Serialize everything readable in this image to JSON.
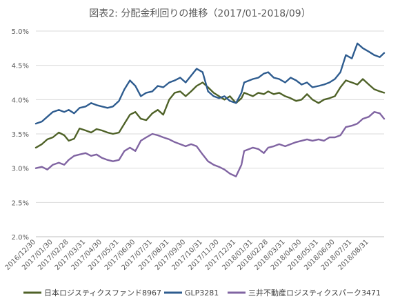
{
  "chart_data": {
    "type": "line",
    "title": "図表2: 分配金利回りの推移（2017/01-2018/09）",
    "xlabel": "",
    "ylabel": "",
    "x_range": [
      "2016-12-30",
      "2018-09-28"
    ],
    "ylim": [
      0.02,
      0.05
    ],
    "y_ticks": [
      0.02,
      0.025,
      0.03,
      0.035,
      0.04,
      0.045,
      0.05
    ],
    "y_tick_labels": [
      "2.0%",
      "2.5%",
      "3.0%",
      "3.5%",
      "4.0%",
      "4.5%",
      "5.0%"
    ],
    "x_tick_labels": [
      "2016/12/30",
      "2017/01/30",
      "2017/02/28",
      "2017/03/31",
      "2017/04/30",
      "2017/05/31",
      "2017/06/30",
      "2017/07/31",
      "2017/08/31",
      "2017/09/30",
      "2017/10/31",
      "2017/11/30",
      "2017/12/31",
      "2018/01/31",
      "2018/02/28",
      "2018/03/31",
      "2018/04/30",
      "2018/05/31",
      "2018/06/30",
      "2018/07/31",
      "2018/08/31"
    ],
    "grid": "horizontal",
    "legend_position": "bottom",
    "series": [
      {
        "name": "日本ロジスティクスファンド8967",
        "color": "#4f6228",
        "points": [
          [
            "2016-12-30",
            0.033
          ],
          [
            "2017-01-10",
            0.0335
          ],
          [
            "2017-01-20",
            0.0342
          ],
          [
            "2017-01-30",
            0.0345
          ],
          [
            "2017-02-10",
            0.0352
          ],
          [
            "2017-02-20",
            0.0348
          ],
          [
            "2017-02-28",
            0.034
          ],
          [
            "2017-03-10",
            0.0343
          ],
          [
            "2017-03-20",
            0.0358
          ],
          [
            "2017-03-31",
            0.0355
          ],
          [
            "2017-04-10",
            0.0352
          ],
          [
            "2017-04-20",
            0.0357
          ],
          [
            "2017-04-30",
            0.0355
          ],
          [
            "2017-05-10",
            0.0352
          ],
          [
            "2017-05-20",
            0.035
          ],
          [
            "2017-05-31",
            0.0352
          ],
          [
            "2017-06-10",
            0.0365
          ],
          [
            "2017-06-20",
            0.0378
          ],
          [
            "2017-06-30",
            0.0382
          ],
          [
            "2017-07-10",
            0.0372
          ],
          [
            "2017-07-20",
            0.037
          ],
          [
            "2017-07-31",
            0.038
          ],
          [
            "2017-08-10",
            0.0385
          ],
          [
            "2017-08-20",
            0.0378
          ],
          [
            "2017-08-31",
            0.04
          ],
          [
            "2017-09-10",
            0.041
          ],
          [
            "2017-09-20",
            0.0412
          ],
          [
            "2017-09-30",
            0.0405
          ],
          [
            "2017-10-10",
            0.0412
          ],
          [
            "2017-10-20",
            0.042
          ],
          [
            "2017-10-31",
            0.0425
          ],
          [
            "2017-11-10",
            0.0418
          ],
          [
            "2017-11-20",
            0.041
          ],
          [
            "2017-11-30",
            0.0405
          ],
          [
            "2017-12-10",
            0.04
          ],
          [
            "2017-12-20",
            0.0405
          ],
          [
            "2017-12-31",
            0.0395
          ],
          [
            "2018-01-10",
            0.0402
          ],
          [
            "2018-01-15",
            0.041
          ],
          [
            "2018-01-31",
            0.0405
          ],
          [
            "2018-02-10",
            0.041
          ],
          [
            "2018-02-20",
            0.0408
          ],
          [
            "2018-02-28",
            0.0412
          ],
          [
            "2018-03-10",
            0.0408
          ],
          [
            "2018-03-20",
            0.041
          ],
          [
            "2018-03-31",
            0.0405
          ],
          [
            "2018-04-10",
            0.0402
          ],
          [
            "2018-04-20",
            0.0398
          ],
          [
            "2018-04-30",
            0.04
          ],
          [
            "2018-05-10",
            0.0408
          ],
          [
            "2018-05-20",
            0.04
          ],
          [
            "2018-05-31",
            0.0395
          ],
          [
            "2018-06-10",
            0.04
          ],
          [
            "2018-06-20",
            0.0402
          ],
          [
            "2018-06-30",
            0.0405
          ],
          [
            "2018-07-10",
            0.0418
          ],
          [
            "2018-07-20",
            0.0428
          ],
          [
            "2018-07-31",
            0.0425
          ],
          [
            "2018-08-10",
            0.0422
          ],
          [
            "2018-08-20",
            0.043
          ],
          [
            "2018-08-31",
            0.0422
          ],
          [
            "2018-09-10",
            0.0415
          ],
          [
            "2018-09-20",
            0.0412
          ],
          [
            "2018-09-28",
            0.041
          ]
        ]
      },
      {
        "name": "GLP3281",
        "color": "#2e5c8f",
        "points": [
          [
            "2016-12-30",
            0.0365
          ],
          [
            "2017-01-10",
            0.0368
          ],
          [
            "2017-01-20",
            0.0375
          ],
          [
            "2017-01-30",
            0.0382
          ],
          [
            "2017-02-10",
            0.0385
          ],
          [
            "2017-02-20",
            0.0382
          ],
          [
            "2017-02-28",
            0.0385
          ],
          [
            "2017-03-10",
            0.038
          ],
          [
            "2017-03-20",
            0.0388
          ],
          [
            "2017-03-31",
            0.039
          ],
          [
            "2017-04-10",
            0.0395
          ],
          [
            "2017-04-20",
            0.0392
          ],
          [
            "2017-04-30",
            0.039
          ],
          [
            "2017-05-10",
            0.0388
          ],
          [
            "2017-05-20",
            0.039
          ],
          [
            "2017-05-31",
            0.0398
          ],
          [
            "2017-06-10",
            0.0415
          ],
          [
            "2017-06-20",
            0.0428
          ],
          [
            "2017-06-30",
            0.042
          ],
          [
            "2017-07-10",
            0.0405
          ],
          [
            "2017-07-20",
            0.041
          ],
          [
            "2017-07-31",
            0.0412
          ],
          [
            "2017-08-10",
            0.042
          ],
          [
            "2017-08-20",
            0.0418
          ],
          [
            "2017-08-31",
            0.0425
          ],
          [
            "2017-09-10",
            0.0428
          ],
          [
            "2017-09-20",
            0.0432
          ],
          [
            "2017-09-30",
            0.0425
          ],
          [
            "2017-10-10",
            0.0435
          ],
          [
            "2017-10-20",
            0.0445
          ],
          [
            "2017-10-31",
            0.044
          ],
          [
            "2017-11-10",
            0.0412
          ],
          [
            "2017-11-20",
            0.0405
          ],
          [
            "2017-11-30",
            0.0402
          ],
          [
            "2017-12-10",
            0.0405
          ],
          [
            "2017-12-20",
            0.0398
          ],
          [
            "2017-12-31",
            0.0395
          ],
          [
            "2018-01-10",
            0.041
          ],
          [
            "2018-01-15",
            0.0425
          ],
          [
            "2018-01-31",
            0.043
          ],
          [
            "2018-02-10",
            0.0432
          ],
          [
            "2018-02-20",
            0.0438
          ],
          [
            "2018-02-28",
            0.044
          ],
          [
            "2018-03-10",
            0.0432
          ],
          [
            "2018-03-20",
            0.043
          ],
          [
            "2018-03-31",
            0.0425
          ],
          [
            "2018-04-10",
            0.0432
          ],
          [
            "2018-04-20",
            0.0428
          ],
          [
            "2018-04-30",
            0.0422
          ],
          [
            "2018-05-10",
            0.0425
          ],
          [
            "2018-05-20",
            0.0418
          ],
          [
            "2018-05-31",
            0.042
          ],
          [
            "2018-06-10",
            0.0422
          ],
          [
            "2018-06-20",
            0.0425
          ],
          [
            "2018-06-30",
            0.043
          ],
          [
            "2018-07-10",
            0.044
          ],
          [
            "2018-07-20",
            0.0465
          ],
          [
            "2018-07-31",
            0.046
          ],
          [
            "2018-08-10",
            0.0482
          ],
          [
            "2018-08-20",
            0.0475
          ],
          [
            "2018-08-31",
            0.047
          ],
          [
            "2018-09-10",
            0.0465
          ],
          [
            "2018-09-20",
            0.0462
          ],
          [
            "2018-09-28",
            0.0468
          ]
        ]
      },
      {
        "name": "三井不動産ロジスティクスパーク3471",
        "color": "#8064a2",
        "points": [
          [
            "2016-12-30",
            0.03
          ],
          [
            "2017-01-10",
            0.0302
          ],
          [
            "2017-01-20",
            0.0298
          ],
          [
            "2017-01-30",
            0.0305
          ],
          [
            "2017-02-10",
            0.0308
          ],
          [
            "2017-02-20",
            0.0305
          ],
          [
            "2017-02-28",
            0.0312
          ],
          [
            "2017-03-10",
            0.0318
          ],
          [
            "2017-03-20",
            0.032
          ],
          [
            "2017-03-31",
            0.0322
          ],
          [
            "2017-04-10",
            0.0318
          ],
          [
            "2017-04-20",
            0.032
          ],
          [
            "2017-04-30",
            0.0315
          ],
          [
            "2017-05-10",
            0.0312
          ],
          [
            "2017-05-20",
            0.031
          ],
          [
            "2017-05-31",
            0.0312
          ],
          [
            "2017-06-10",
            0.0325
          ],
          [
            "2017-06-20",
            0.033
          ],
          [
            "2017-06-30",
            0.0325
          ],
          [
            "2017-07-10",
            0.034
          ],
          [
            "2017-07-20",
            0.0345
          ],
          [
            "2017-07-31",
            0.035
          ],
          [
            "2017-08-10",
            0.0348
          ],
          [
            "2017-08-20",
            0.0345
          ],
          [
            "2017-08-31",
            0.0342
          ],
          [
            "2017-09-10",
            0.0338
          ],
          [
            "2017-09-20",
            0.0335
          ],
          [
            "2017-09-30",
            0.0332
          ],
          [
            "2017-10-10",
            0.0335
          ],
          [
            "2017-10-20",
            0.0332
          ],
          [
            "2017-10-31",
            0.032
          ],
          [
            "2017-11-10",
            0.031
          ],
          [
            "2017-11-20",
            0.0305
          ],
          [
            "2017-11-30",
            0.0302
          ],
          [
            "2017-12-10",
            0.0298
          ],
          [
            "2017-12-20",
            0.0292
          ],
          [
            "2017-12-31",
            0.0288
          ],
          [
            "2018-01-10",
            0.0305
          ],
          [
            "2018-01-15",
            0.0325
          ],
          [
            "2018-01-31",
            0.033
          ],
          [
            "2018-02-10",
            0.0328
          ],
          [
            "2018-02-20",
            0.0322
          ],
          [
            "2018-02-28",
            0.033
          ],
          [
            "2018-03-10",
            0.0332
          ],
          [
            "2018-03-20",
            0.0335
          ],
          [
            "2018-03-31",
            0.0332
          ],
          [
            "2018-04-10",
            0.0335
          ],
          [
            "2018-04-20",
            0.0338
          ],
          [
            "2018-04-30",
            0.034
          ],
          [
            "2018-05-10",
            0.0342
          ],
          [
            "2018-05-20",
            0.034
          ],
          [
            "2018-05-31",
            0.0342
          ],
          [
            "2018-06-10",
            0.034
          ],
          [
            "2018-06-20",
            0.0345
          ],
          [
            "2018-06-30",
            0.0345
          ],
          [
            "2018-07-10",
            0.0348
          ],
          [
            "2018-07-20",
            0.036
          ],
          [
            "2018-07-31",
            0.0362
          ],
          [
            "2018-08-10",
            0.0365
          ],
          [
            "2018-08-20",
            0.0372
          ],
          [
            "2018-08-31",
            0.0375
          ],
          [
            "2018-09-10",
            0.0382
          ],
          [
            "2018-09-20",
            0.038
          ],
          [
            "2018-09-28",
            0.0372
          ]
        ]
      }
    ]
  }
}
